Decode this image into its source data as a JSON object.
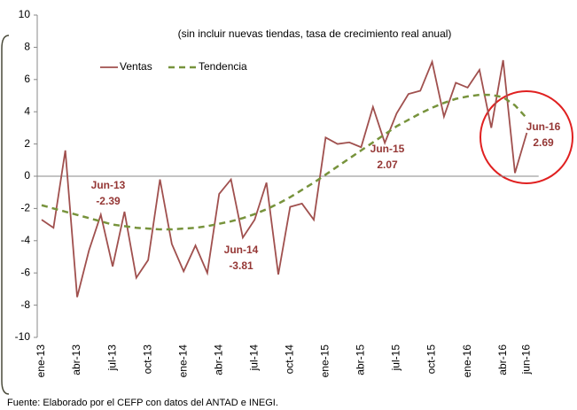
{
  "chart_data": {
    "type": "line",
    "subtitle": "(sin incluir nuevas tiendas, tasa de crecimiento real anual)",
    "source": "Fuente: Elaborado por el CEFP con datos del ANTAD e INEGI.",
    "categories": [
      "ene-13",
      null,
      null,
      "abr-13",
      null,
      null,
      "jul-13",
      null,
      null,
      "oct-13",
      null,
      null,
      "ene-14",
      null,
      null,
      "abr-14",
      null,
      null,
      "jul-14",
      null,
      null,
      "oct-14",
      null,
      null,
      "ene-15",
      null,
      null,
      "abr-15",
      null,
      null,
      "jul-15",
      null,
      null,
      "oct-15",
      null,
      null,
      "ene-16",
      null,
      null,
      "abr-16",
      null,
      "jun-16"
    ],
    "series": [
      {
        "name": "Ventas",
        "color": "#a0504e",
        "dashed": false,
        "values": [
          -2.7,
          -3.2,
          1.6,
          -7.5,
          -4.6,
          -2.39,
          -5.6,
          -2.2,
          -6.3,
          -5.2,
          -0.2,
          -4.2,
          -5.9,
          -4.3,
          -6.0,
          -1.1,
          -0.2,
          -3.81,
          -2.7,
          -0.4,
          -6.1,
          -1.9,
          -1.7,
          -2.7,
          2.4,
          2.0,
          2.1,
          1.8,
          4.3,
          2.07,
          3.9,
          5.1,
          5.3,
          7.1,
          3.7,
          5.8,
          5.5,
          6.6,
          3.0,
          7.2,
          0.2,
          2.69
        ]
      },
      {
        "name": "Tendencia",
        "color": "#77933c",
        "dashed": true,
        "values": [
          -1.8,
          -2.0,
          -2.2,
          -2.4,
          -2.6,
          -2.8,
          -3.0,
          -3.1,
          -3.2,
          -3.25,
          -3.3,
          -3.3,
          -3.25,
          -3.2,
          -3.1,
          -2.95,
          -2.8,
          -2.6,
          -2.35,
          -2.05,
          -1.7,
          -1.3,
          -0.85,
          -0.4,
          0.1,
          0.6,
          1.1,
          1.6,
          2.1,
          2.6,
          3.1,
          3.5,
          3.9,
          4.25,
          4.55,
          4.8,
          4.95,
          5.05,
          5.05,
          4.9,
          4.4,
          3.6
        ]
      }
    ],
    "annotations": [
      "Jun-13",
      "Jun-14",
      "Jun-15",
      "Jun-16"
    ],
    "ylim": [
      -10,
      10
    ],
    "yticks": [
      -10,
      -8,
      -6,
      -4,
      -2,
      0,
      2,
      4,
      6,
      8,
      10
    ]
  }
}
